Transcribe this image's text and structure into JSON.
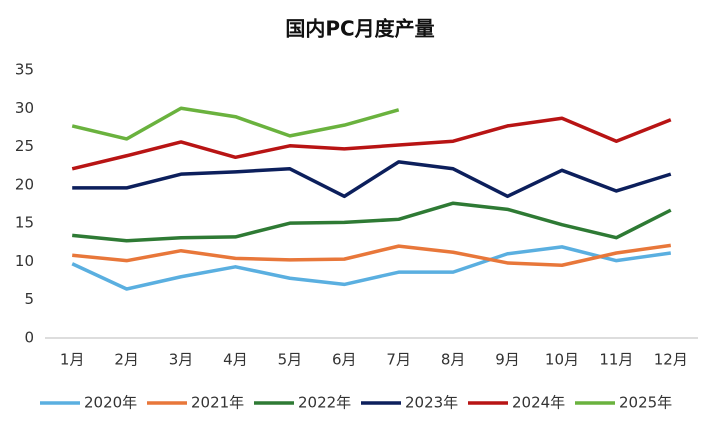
{
  "chart_data": {
    "type": "line",
    "title": "国内PC月度产量",
    "categories": [
      "1月",
      "2月",
      "3月",
      "4月",
      "5月",
      "6月",
      "7月",
      "8月",
      "9月",
      "10月",
      "11月",
      "12月"
    ],
    "series": [
      {
        "name": "2020年",
        "color": "#5aafe0",
        "values": [
          9.7,
          6.4,
          8.0,
          9.3,
          7.8,
          7.0,
          8.6,
          8.6,
          11.0,
          11.9,
          10.1,
          11.1
        ]
      },
      {
        "name": "2021年",
        "color": "#e8773a",
        "values": [
          10.8,
          10.1,
          11.4,
          10.4,
          10.2,
          10.3,
          12.0,
          11.2,
          9.8,
          9.5,
          11.1,
          12.1
        ]
      },
      {
        "name": "2022年",
        "color": "#2e7a34",
        "values": [
          13.4,
          12.7,
          13.1,
          13.2,
          15.0,
          15.1,
          15.5,
          17.6,
          16.8,
          14.8,
          13.1,
          16.7
        ]
      },
      {
        "name": "2023年",
        "color": "#0c1f5c",
        "values": [
          19.6,
          19.6,
          21.4,
          21.7,
          22.1,
          18.5,
          23.0,
          22.1,
          18.5,
          21.9,
          19.2,
          21.4
        ]
      },
      {
        "name": "2024年",
        "color": "#b81414",
        "values": [
          22.1,
          23.8,
          25.6,
          23.6,
          25.1,
          24.7,
          25.2,
          25.7,
          27.7,
          28.7,
          25.7,
          28.5
        ]
      },
      {
        "name": "2025年",
        "color": "#6ab23e",
        "values": [
          27.7,
          26.0,
          30.0,
          28.9,
          26.4,
          27.8,
          29.8,
          null,
          null,
          null,
          null,
          null
        ]
      }
    ],
    "ylim": [
      0,
      35
    ],
    "yticks": [
      0,
      5,
      10,
      15,
      20,
      25,
      30,
      35
    ],
    "grid": false,
    "legend": "bottom"
  }
}
